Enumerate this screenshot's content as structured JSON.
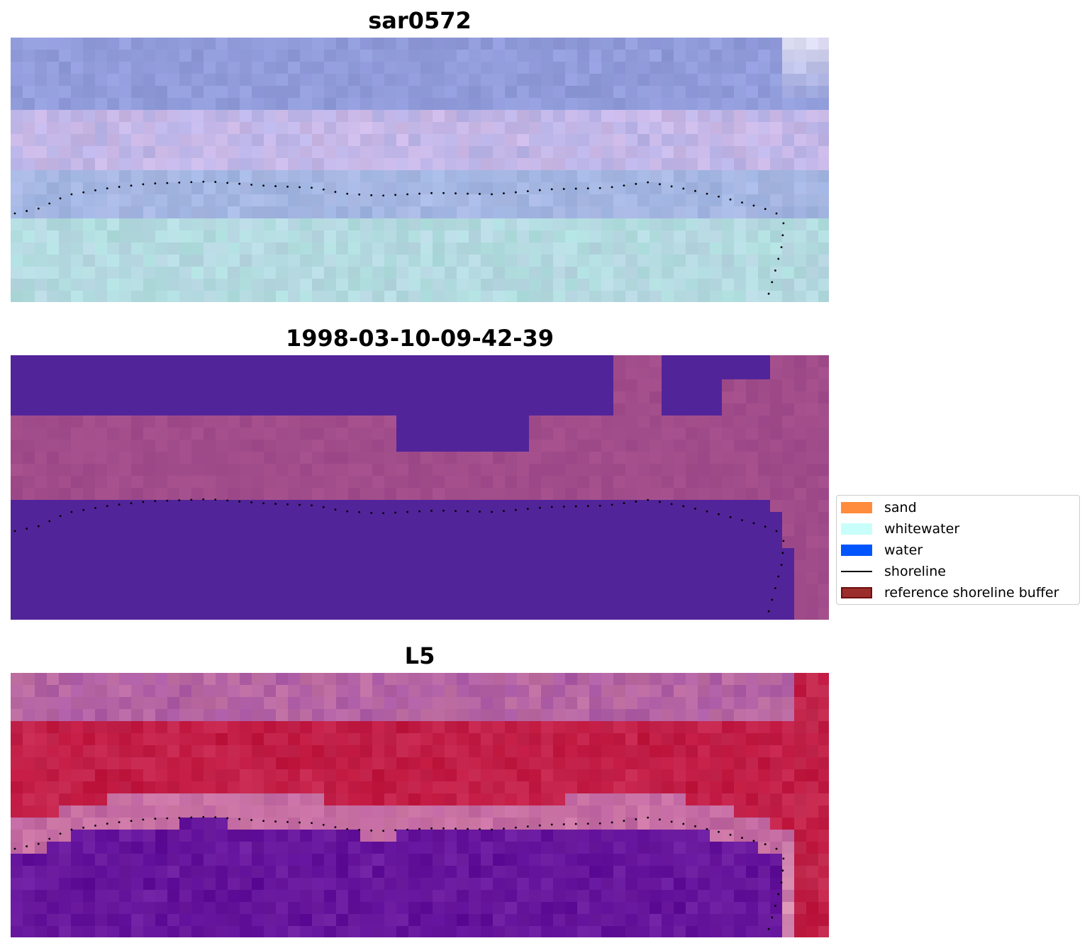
{
  "panels": [
    {
      "title": "sar0572",
      "scheme": "sar"
    },
    {
      "title": "1998-03-10-09-42-39",
      "scheme": "classified"
    },
    {
      "title": "L5",
      "scheme": "l5"
    }
  ],
  "legend": {
    "items": [
      {
        "label": "sand",
        "color": "#ff8c3c",
        "kind": "patch"
      },
      {
        "label": "whitewater",
        "color": "#c8fffa",
        "kind": "patch"
      },
      {
        "label": "water",
        "color": "#0055ff",
        "kind": "patch"
      },
      {
        "label": "shoreline",
        "color": "#000000",
        "kind": "line"
      },
      {
        "label": "reference shoreline buffer",
        "color": "#9b2d2d",
        "kind": "patch"
      }
    ]
  },
  "colors": {
    "sar_light": "#b8d7e2",
    "sar_purple": "#8f9ad8",
    "class_dark": "#52249a",
    "class_mid": "#a24e8e",
    "l5_red": "#c0163e",
    "l5_purple": "#5e0d98",
    "shoreline_dots": "#000000"
  }
}
